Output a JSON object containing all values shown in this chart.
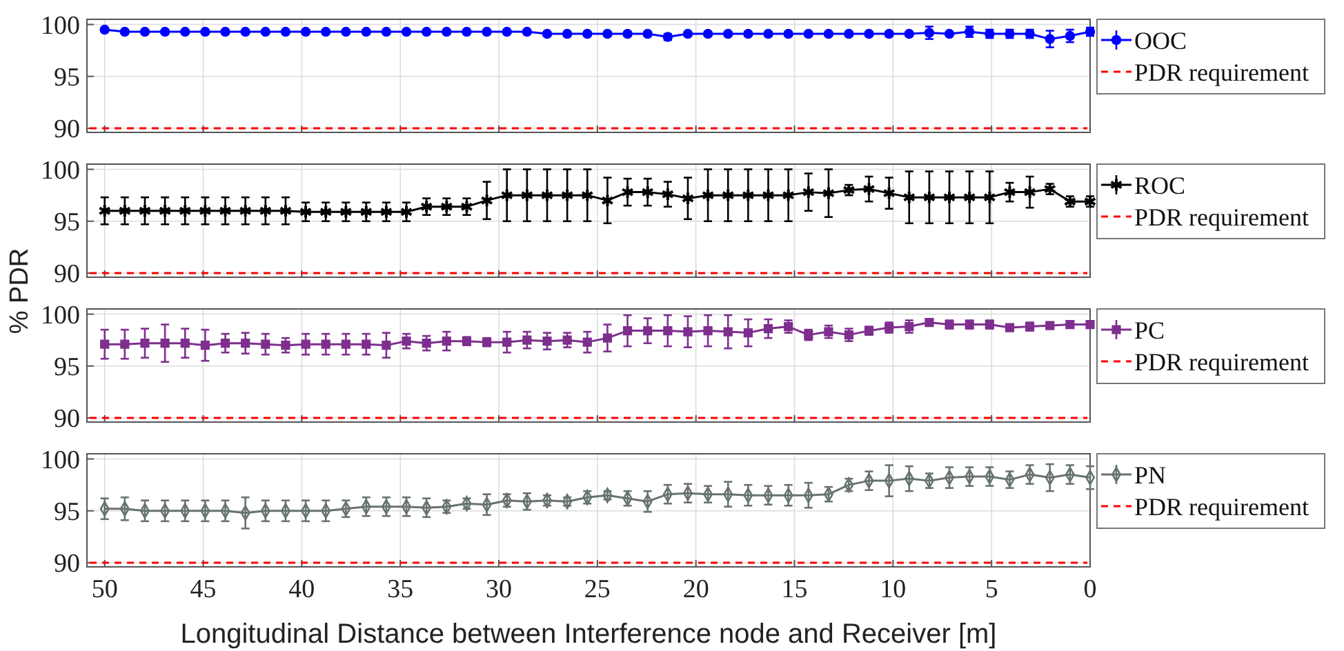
{
  "chart_data": [
    {
      "type": "line",
      "ylabel": "% PDR",
      "xlim": [
        50.9,
        0
      ],
      "ylim": [
        89.6,
        100.5
      ],
      "yticks": [
        90,
        95,
        100
      ],
      "xticks": [
        50,
        45,
        40,
        35,
        30,
        25,
        20,
        15,
        10,
        5,
        0
      ],
      "grid": true,
      "tick_labels": "y",
      "legend": "right",
      "marker": "circle",
      "line_style": "solid",
      "x": [
        50,
        48.98,
        47.96,
        46.94,
        45.92,
        44.9,
        43.88,
        42.86,
        41.84,
        40.82,
        39.8,
        38.78,
        37.76,
        36.73,
        35.71,
        34.69,
        33.67,
        32.65,
        31.63,
        30.61,
        29.59,
        28.57,
        27.55,
        26.53,
        25.51,
        24.49,
        23.47,
        22.45,
        21.43,
        20.41,
        19.39,
        18.37,
        17.35,
        16.33,
        15.31,
        14.29,
        13.27,
        12.24,
        11.22,
        10.2,
        9.18,
        8.16,
        7.14,
        6.12,
        5.1,
        4.08,
        3.06,
        2.04,
        1.02,
        0
      ],
      "series": [
        {
          "name": "OOC",
          "color": "#0000ff",
          "values": [
            99.5,
            99.3,
            99.3,
            99.3,
            99.3,
            99.3,
            99.3,
            99.3,
            99.3,
            99.3,
            99.3,
            99.3,
            99.3,
            99.3,
            99.3,
            99.3,
            99.3,
            99.3,
            99.3,
            99.3,
            99.3,
            99.3,
            99.1,
            99.1,
            99.1,
            99.1,
            99.1,
            99.1,
            98.8,
            99.1,
            99.1,
            99.1,
            99.1,
            99.1,
            99.1,
            99.1,
            99.1,
            99.1,
            99.1,
            99.1,
            99.1,
            99.2,
            99.1,
            99.3,
            99.1,
            99.1,
            99.1,
            98.6,
            98.9,
            99.3
          ],
          "errors": [
            null,
            null,
            null,
            null,
            null,
            null,
            null,
            null,
            null,
            null,
            null,
            null,
            null,
            null,
            null,
            null,
            null,
            null,
            null,
            null,
            null,
            null,
            0.2,
            0.2,
            0.2,
            0.2,
            0.2,
            0.2,
            0.3,
            0.2,
            0.2,
            0.2,
            0.2,
            0.2,
            0.2,
            0.2,
            0.2,
            0.2,
            0.2,
            0.2,
            0.2,
            0.6,
            null,
            0.5,
            0.4,
            0.4,
            0.4,
            0.8,
            0.6,
            0.4
          ]
        }
      ],
      "ref_lines": [
        {
          "axis": "y",
          "value": 90,
          "label": "PDR requirement",
          "color": "#ff0000",
          "line_style": "dashed"
        }
      ]
    },
    {
      "type": "line",
      "xlim": [
        50.9,
        0
      ],
      "ylim": [
        89.6,
        100.5
      ],
      "yticks": [
        90,
        95,
        100
      ],
      "xticks": [
        50,
        45,
        40,
        35,
        30,
        25,
        20,
        15,
        10,
        5,
        0
      ],
      "grid": true,
      "tick_labels": "y",
      "legend": "right",
      "marker": "cross",
      "line_style": "solid",
      "x": [
        50,
        48.98,
        47.96,
        46.94,
        45.92,
        44.9,
        43.88,
        42.86,
        41.84,
        40.82,
        39.8,
        38.78,
        37.76,
        36.73,
        35.71,
        34.69,
        33.67,
        32.65,
        31.63,
        30.61,
        29.59,
        28.57,
        27.55,
        26.53,
        25.51,
        24.49,
        23.47,
        22.45,
        21.43,
        20.41,
        19.39,
        18.37,
        17.35,
        16.33,
        15.31,
        14.29,
        13.27,
        12.24,
        11.22,
        10.2,
        9.18,
        8.16,
        7.14,
        6.12,
        5.1,
        4.08,
        3.06,
        2.04,
        1.02,
        0
      ],
      "series": [
        {
          "name": "ROC",
          "color": "#000000",
          "values": [
            96.0,
            96.0,
            96.0,
            96.0,
            96.0,
            96.0,
            96.0,
            96.0,
            96.0,
            96.0,
            95.9,
            95.9,
            95.9,
            95.9,
            95.9,
            95.9,
            96.4,
            96.4,
            96.4,
            97.0,
            97.5,
            97.5,
            97.5,
            97.5,
            97.5,
            97.0,
            97.8,
            97.8,
            97.6,
            97.2,
            97.5,
            97.5,
            97.5,
            97.5,
            97.5,
            97.8,
            97.7,
            98.0,
            98.1,
            97.7,
            97.3,
            97.3,
            97.3,
            97.3,
            97.3,
            97.8,
            97.8,
            98.1,
            96.9,
            96.9
          ],
          "errors": [
            1.3,
            1.3,
            1.3,
            1.3,
            1.3,
            1.3,
            1.3,
            1.3,
            1.3,
            1.3,
            0.9,
            0.9,
            0.9,
            0.9,
            0.9,
            0.9,
            0.8,
            0.8,
            0.8,
            1.8,
            2.5,
            2.5,
            2.5,
            2.5,
            2.5,
            2.2,
            1.3,
            1.3,
            1.2,
            2.0,
            2.5,
            2.5,
            2.5,
            2.5,
            2.5,
            1.8,
            2.3,
            0.5,
            1.2,
            1.5,
            2.5,
            2.5,
            2.5,
            2.5,
            2.5,
            0.9,
            1.5,
            0.5,
            0.5,
            0.5
          ]
        }
      ],
      "ref_lines": [
        {
          "axis": "y",
          "value": 90,
          "label": "PDR requirement",
          "color": "#ff0000",
          "line_style": "dashed"
        }
      ]
    },
    {
      "type": "line",
      "xlim": [
        50.9,
        0
      ],
      "ylim": [
        89.6,
        100.5
      ],
      "yticks": [
        90,
        95,
        100
      ],
      "xticks": [
        50,
        45,
        40,
        35,
        30,
        25,
        20,
        15,
        10,
        5,
        0
      ],
      "grid": true,
      "tick_labels": "y",
      "legend": "right",
      "marker": "square",
      "line_style": "solid",
      "x": [
        50,
        48.98,
        47.96,
        46.94,
        45.92,
        44.9,
        43.88,
        42.86,
        41.84,
        40.82,
        39.8,
        38.78,
        37.76,
        36.73,
        35.71,
        34.69,
        33.67,
        32.65,
        31.63,
        30.61,
        29.59,
        28.57,
        27.55,
        26.53,
        25.51,
        24.49,
        23.47,
        22.45,
        21.43,
        20.41,
        19.39,
        18.37,
        17.35,
        16.33,
        15.31,
        14.29,
        13.27,
        12.24,
        11.22,
        10.2,
        9.18,
        8.16,
        7.14,
        6.12,
        5.1,
        4.08,
        3.06,
        2.04,
        1.02,
        0
      ],
      "series": [
        {
          "name": "PC",
          "color": "#7e2f8e",
          "values": [
            97.1,
            97.1,
            97.2,
            97.2,
            97.2,
            97.0,
            97.2,
            97.2,
            97.1,
            97.0,
            97.1,
            97.1,
            97.1,
            97.1,
            97.0,
            97.4,
            97.2,
            97.4,
            97.4,
            97.3,
            97.3,
            97.5,
            97.4,
            97.5,
            97.3,
            97.7,
            98.4,
            98.4,
            98.4,
            98.3,
            98.4,
            98.3,
            98.2,
            98.6,
            98.8,
            98.0,
            98.3,
            98.0,
            98.4,
            98.7,
            98.8,
            99.2,
            99.0,
            99.0,
            99.0,
            98.7,
            98.8,
            98.9,
            99.0,
            99.0
          ],
          "errors": [
            1.4,
            1.4,
            1.4,
            1.8,
            1.4,
            1.5,
            0.9,
            1.0,
            1.0,
            0.7,
            1.0,
            1.0,
            1.0,
            1.0,
            1.2,
            0.7,
            0.7,
            0.9,
            0.4,
            0.4,
            1.0,
            0.8,
            0.8,
            0.7,
            1.0,
            1.3,
            1.5,
            1.2,
            1.5,
            1.5,
            1.5,
            1.6,
            1.3,
            0.9,
            0.6,
            0.5,
            0.6,
            0.6,
            0.4,
            0.5,
            0.6,
            0.3,
            0.4,
            0.4,
            0.4,
            0.2,
            0.4,
            0.2,
            0.2,
            0.2
          ]
        }
      ],
      "ref_lines": [
        {
          "axis": "y",
          "value": 90,
          "label": "PDR requirement",
          "color": "#ff0000",
          "line_style": "dashed"
        }
      ]
    },
    {
      "type": "line",
      "xlabel": "Longitudinal Distance between Interference node and Receiver [m]",
      "xlim": [
        50.9,
        0
      ],
      "ylim": [
        89.6,
        100.5
      ],
      "yticks": [
        90,
        95,
        100
      ],
      "xticks": [
        50,
        45,
        40,
        35,
        30,
        25,
        20,
        15,
        10,
        5,
        0
      ],
      "grid": true,
      "legend": "right",
      "marker": "diamond",
      "line_style": "solid",
      "x": [
        50,
        48.98,
        47.96,
        46.94,
        45.92,
        44.9,
        43.88,
        42.86,
        41.84,
        40.82,
        39.8,
        38.78,
        37.76,
        36.73,
        35.71,
        34.69,
        33.67,
        32.65,
        31.63,
        30.61,
        29.59,
        28.57,
        27.55,
        26.53,
        25.51,
        24.49,
        23.47,
        22.45,
        21.43,
        20.41,
        19.39,
        18.37,
        17.35,
        16.33,
        15.31,
        14.29,
        13.27,
        12.24,
        11.22,
        10.2,
        9.18,
        8.16,
        7.14,
        6.12,
        5.1,
        4.08,
        3.06,
        2.04,
        1.02,
        0
      ],
      "series": [
        {
          "name": "PN",
          "color": "#66736f",
          "values": [
            95.2,
            95.2,
            95.0,
            95.0,
            95.0,
            95.0,
            95.0,
            94.8,
            95.0,
            95.0,
            95.0,
            95.0,
            95.2,
            95.4,
            95.4,
            95.4,
            95.3,
            95.4,
            95.7,
            95.6,
            96.0,
            95.9,
            96.0,
            95.9,
            96.3,
            96.5,
            96.2,
            95.9,
            96.6,
            96.7,
            96.6,
            96.6,
            96.5,
            96.5,
            96.5,
            96.5,
            96.6,
            97.5,
            97.9,
            97.9,
            98.1,
            97.9,
            98.2,
            98.3,
            98.3,
            98.0,
            98.5,
            98.2,
            98.5,
            98.2
          ],
          "errors": [
            1.0,
            1.1,
            1.0,
            1.0,
            1.0,
            1.0,
            1.0,
            1.5,
            1.0,
            1.0,
            1.0,
            1.0,
            0.8,
            0.9,
            0.9,
            0.9,
            0.9,
            0.6,
            0.5,
            1.0,
            0.6,
            0.8,
            0.5,
            0.4,
            0.6,
            0.4,
            0.7,
            1.0,
            0.9,
            0.9,
            0.8,
            1.2,
            1.0,
            0.9,
            1.0,
            1.2,
            0.7,
            0.6,
            0.9,
            1.5,
            1.2,
            0.7,
            1.0,
            0.9,
            0.9,
            0.8,
            0.9,
            1.3,
            0.9,
            1.1
          ]
        }
      ],
      "ref_lines": [
        {
          "axis": "y",
          "value": 90,
          "label": "PDR requirement",
          "color": "#ff0000",
          "line_style": "dashed"
        }
      ]
    }
  ]
}
